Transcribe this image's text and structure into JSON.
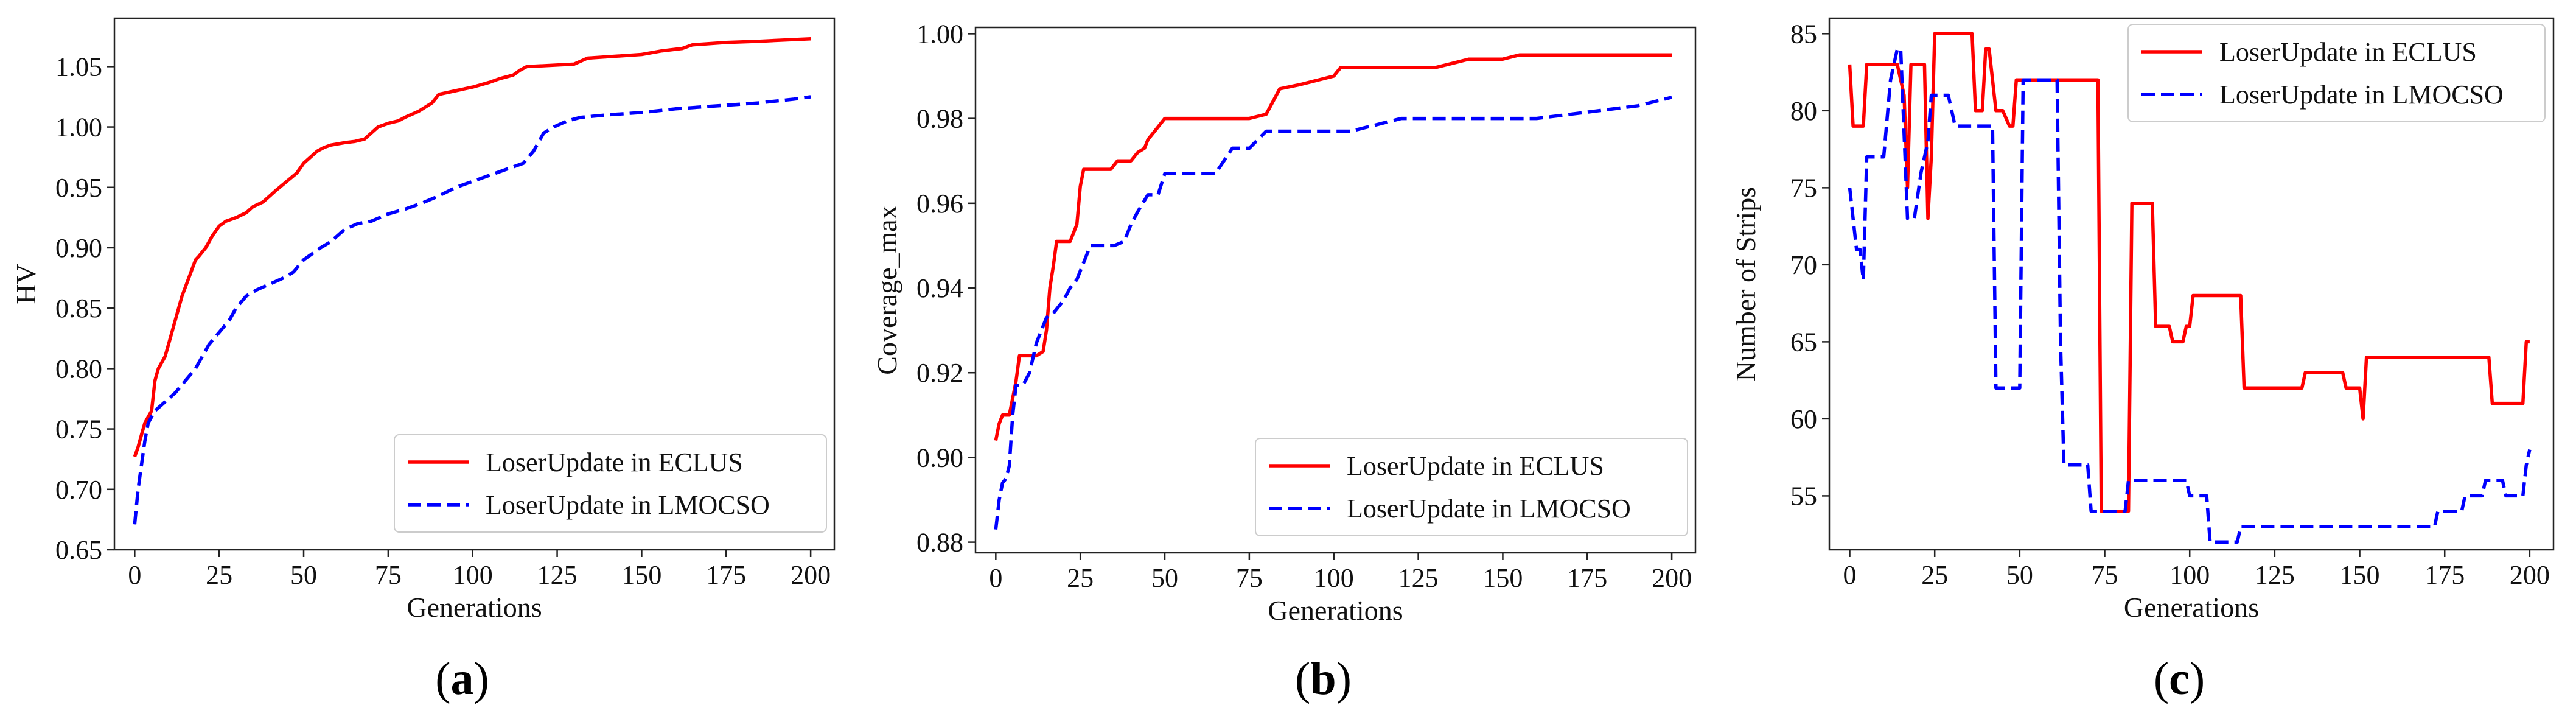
{
  "chart_data": [
    {
      "type": "line",
      "panel": "a",
      "caption": "a",
      "xlabel": "Generations",
      "ylabel": "HV",
      "xlim": [
        -6,
        207
      ],
      "ylim": [
        0.65,
        1.09
      ],
      "xticks": [
        0,
        25,
        50,
        75,
        100,
        125,
        150,
        175,
        200
      ],
      "yticks": [
        0.65,
        0.7,
        0.75,
        0.8,
        0.85,
        0.9,
        0.95,
        1.0,
        1.05
      ],
      "xtick_labels": [
        "0",
        "25",
        "50",
        "75",
        "100",
        "125",
        "150",
        "175",
        "200"
      ],
      "ytick_labels": [
        "0.65",
        "0.70",
        "0.75",
        "0.80",
        "0.85",
        "0.90",
        "0.95",
        "1.00",
        "1.05"
      ],
      "legend_position": "bottom-right",
      "series": [
        {
          "name": "LoserUpdate in ECLUS",
          "color": "#ff0000",
          "dash": "solid",
          "x": [
            0,
            1,
            2,
            3,
            5,
            6,
            7,
            9,
            10,
            12,
            14,
            16,
            18,
            19,
            21,
            23,
            25,
            27,
            30,
            33,
            35,
            38,
            40,
            42,
            45,
            48,
            50,
            52,
            54,
            56,
            58,
            62,
            65,
            68,
            70,
            72,
            75,
            78,
            80,
            84,
            88,
            90,
            95,
            100,
            105,
            108,
            112,
            114,
            116,
            130,
            134,
            150,
            156,
            162,
            165,
            175,
            185,
            200
          ],
          "y": [
            0.727,
            0.735,
            0.745,
            0.755,
            0.765,
            0.79,
            0.8,
            0.81,
            0.82,
            0.84,
            0.86,
            0.875,
            0.89,
            0.893,
            0.9,
            0.91,
            0.918,
            0.922,
            0.925,
            0.929,
            0.934,
            0.938,
            0.943,
            0.948,
            0.955,
            0.962,
            0.97,
            0.975,
            0.98,
            0.983,
            0.985,
            0.987,
            0.988,
            0.99,
            0.995,
            1.0,
            1.003,
            1.005,
            1.008,
            1.013,
            1.02,
            1.027,
            1.03,
            1.033,
            1.037,
            1.04,
            1.043,
            1.047,
            1.05,
            1.052,
            1.057,
            1.06,
            1.063,
            1.065,
            1.068,
            1.07,
            1.071,
            1.073
          ]
        },
        {
          "name": "LoserUpdate in LMOCSO",
          "color": "#0000ff",
          "dash": "dashed",
          "x": [
            0,
            1,
            2,
            3,
            4,
            6,
            8,
            10,
            12,
            15,
            18,
            20,
            22,
            25,
            28,
            30,
            33,
            36,
            40,
            44,
            47,
            50,
            55,
            58,
            62,
            66,
            70,
            75,
            80,
            85,
            90,
            95,
            100,
            105,
            110,
            115,
            118,
            121,
            124,
            128,
            132,
            140,
            150,
            160,
            170,
            185,
            195,
            200
          ],
          "y": [
            0.671,
            0.7,
            0.72,
            0.74,
            0.755,
            0.765,
            0.77,
            0.775,
            0.78,
            0.79,
            0.8,
            0.81,
            0.82,
            0.83,
            0.84,
            0.85,
            0.86,
            0.865,
            0.87,
            0.875,
            0.88,
            0.89,
            0.9,
            0.905,
            0.915,
            0.92,
            0.922,
            0.928,
            0.932,
            0.937,
            0.943,
            0.95,
            0.955,
            0.96,
            0.965,
            0.97,
            0.98,
            0.995,
            1.0,
            1.005,
            1.008,
            1.01,
            1.012,
            1.015,
            1.017,
            1.02,
            1.023,
            1.025
          ]
        }
      ]
    },
    {
      "type": "line",
      "panel": "b",
      "caption": "b",
      "xlabel": "Generations",
      "ylabel": "Coverage_max",
      "xlim": [
        -6,
        207
      ],
      "ylim": [
        0.8775,
        1.0015
      ],
      "xticks": [
        0,
        25,
        50,
        75,
        100,
        125,
        150,
        175,
        200
      ],
      "yticks": [
        0.88,
        0.9,
        0.92,
        0.94,
        0.96,
        0.98,
        1.0
      ],
      "xtick_labels": [
        "0",
        "25",
        "50",
        "75",
        "100",
        "125",
        "150",
        "175",
        "200"
      ],
      "ytick_labels": [
        "0.88",
        "0.90",
        "0.92",
        "0.94",
        "0.96",
        "0.98",
        "1.00"
      ],
      "legend_position": "bottom-right",
      "series": [
        {
          "name": "LoserUpdate in ECLUS",
          "color": "#ff0000",
          "dash": "solid",
          "x": [
            0,
            1,
            2,
            3,
            4,
            5,
            6,
            7,
            8,
            12,
            14,
            15,
            16,
            17,
            18,
            20,
            22,
            24,
            25,
            26,
            28,
            30,
            32,
            34,
            36,
            38,
            40,
            42,
            44,
            45,
            46,
            47,
            48,
            50,
            55,
            60,
            65,
            70,
            75,
            80,
            82,
            84,
            90,
            95,
            100,
            102,
            110,
            115,
            120,
            125,
            130,
            135,
            140,
            145,
            150,
            155,
            160,
            170,
            180,
            190,
            200
          ],
          "y": [
            0.904,
            0.908,
            0.91,
            0.91,
            0.91,
            0.914,
            0.918,
            0.924,
            0.924,
            0.924,
            0.925,
            0.93,
            0.94,
            0.945,
            0.951,
            0.951,
            0.951,
            0.955,
            0.964,
            0.968,
            0.968,
            0.968,
            0.968,
            0.968,
            0.97,
            0.97,
            0.97,
            0.972,
            0.973,
            0.975,
            0.976,
            0.977,
            0.978,
            0.98,
            0.98,
            0.98,
            0.98,
            0.98,
            0.98,
            0.981,
            0.984,
            0.987,
            0.988,
            0.989,
            0.99,
            0.992,
            0.992,
            0.992,
            0.992,
            0.992,
            0.992,
            0.993,
            0.994,
            0.994,
            0.994,
            0.995,
            0.995,
            0.995,
            0.995,
            0.995,
            0.995
          ]
        },
        {
          "name": "LoserUpdate in LMOCSO",
          "color": "#0000ff",
          "dash": "dashed",
          "x": [
            0,
            1,
            2,
            3,
            4,
            5,
            6,
            8,
            10,
            12,
            14,
            15,
            17,
            20,
            22,
            24,
            26,
            28,
            30,
            32,
            35,
            38,
            40,
            42,
            45,
            48,
            50,
            55,
            60,
            65,
            70,
            75,
            80,
            90,
            95,
            100,
            105,
            110,
            115,
            120,
            130,
            140,
            150,
            160,
            170,
            180,
            190,
            195,
            200
          ],
          "y": [
            0.883,
            0.89,
            0.894,
            0.895,
            0.898,
            0.91,
            0.917,
            0.917,
            0.92,
            0.927,
            0.931,
            0.933,
            0.934,
            0.937,
            0.94,
            0.942,
            0.946,
            0.95,
            0.95,
            0.95,
            0.95,
            0.951,
            0.955,
            0.958,
            0.962,
            0.962,
            0.967,
            0.967,
            0.967,
            0.967,
            0.973,
            0.973,
            0.977,
            0.977,
            0.977,
            0.977,
            0.977,
            0.978,
            0.979,
            0.98,
            0.98,
            0.98,
            0.98,
            0.98,
            0.981,
            0.982,
            0.983,
            0.984,
            0.985
          ]
        }
      ]
    },
    {
      "type": "line",
      "panel": "c",
      "caption": "c",
      "xlabel": "Generations",
      "ylabel": "Number of Strips",
      "xlim": [
        -6,
        207
      ],
      "ylim": [
        51.5,
        86
      ],
      "xticks": [
        0,
        25,
        50,
        75,
        100,
        125,
        150,
        175,
        200
      ],
      "yticks": [
        55,
        60,
        65,
        70,
        75,
        80,
        85
      ],
      "xtick_labels": [
        "0",
        "25",
        "50",
        "75",
        "100",
        "125",
        "150",
        "175",
        "200"
      ],
      "ytick_labels": [
        "55",
        "60",
        "65",
        "70",
        "75",
        "80",
        "85"
      ],
      "legend_position": "top-right",
      "series": [
        {
          "name": "LoserUpdate in ECLUS",
          "color": "#ff0000",
          "dash": "solid",
          "x": [
            0,
            1,
            2,
            4,
            5,
            6,
            14,
            15,
            16,
            17,
            18,
            19,
            20,
            22,
            23,
            24,
            25,
            26,
            36,
            37,
            39,
            40,
            41,
            43,
            44,
            45,
            47,
            48,
            49,
            50,
            73,
            74,
            82,
            83,
            89,
            90,
            94,
            95,
            98,
            99,
            100,
            101,
            115,
            116,
            133,
            134,
            145,
            146,
            150,
            151,
            152,
            153,
            188,
            189,
            198,
            199,
            200
          ],
          "y": [
            83,
            79,
            79,
            79,
            83,
            83,
            83,
            82,
            81,
            75,
            83,
            83,
            83,
            83,
            73,
            77,
            85,
            85,
            85,
            80,
            80,
            84,
            84,
            80,
            80,
            80,
            79,
            79,
            82,
            82,
            82,
            54,
            54,
            74,
            74,
            66,
            66,
            65,
            65,
            66,
            66,
            68,
            68,
            62,
            62,
            63,
            63,
            62,
            62,
            60,
            64,
            64,
            64,
            61,
            61,
            65,
            65
          ]
        },
        {
          "name": "LoserUpdate in LMOCSO",
          "color": "#0000ff",
          "dash": "dashed",
          "x": [
            0,
            2,
            3,
            4,
            5,
            8,
            10,
            12,
            14,
            15,
            17,
            18,
            19,
            21,
            22,
            23,
            24,
            26,
            29,
            30,
            31,
            36,
            42,
            43,
            44,
            50,
            51,
            52,
            61,
            62,
            63,
            64,
            70,
            71,
            78,
            81,
            82,
            83,
            99,
            100,
            105,
            106,
            114,
            115,
            116,
            172,
            173,
            180,
            181,
            186,
            187,
            192,
            193,
            198,
            199,
            200
          ],
          "y": [
            75,
            71,
            71,
            69,
            77,
            77,
            77,
            82,
            84,
            84,
            73,
            73,
            73,
            76,
            77,
            78,
            81,
            81,
            81,
            80,
            79,
            79,
            79,
            62,
            62,
            62,
            82,
            82,
            82,
            65,
            57,
            57,
            57,
            54,
            54,
            54,
            56,
            56,
            56,
            55,
            55,
            52,
            52,
            53,
            53,
            53,
            54,
            54,
            55,
            55,
            56,
            56,
            55,
            55,
            57,
            58
          ]
        }
      ]
    }
  ]
}
